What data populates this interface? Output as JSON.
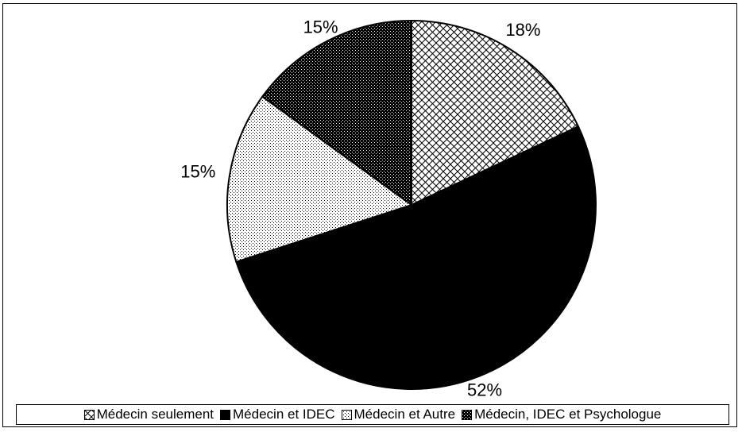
{
  "chart_data": {
    "type": "pie",
    "title": "",
    "start_angle_deg": 0,
    "direction": "clockwise",
    "legend_position": "bottom",
    "slices": [
      {
        "name": "Médecin seulement",
        "value": 18,
        "label": "18%",
        "pattern": "crosshatch"
      },
      {
        "name": "Médecin et IDEC",
        "value": 52,
        "label": "52%",
        "pattern": "solid"
      },
      {
        "name": "Médecin et Autre",
        "value": 15,
        "label": "15%",
        "pattern": "fine-dots"
      },
      {
        "name": "Médecin, IDEC et Psychologue",
        "value": 15,
        "label": "15%",
        "pattern": "dense-dots"
      }
    ]
  }
}
